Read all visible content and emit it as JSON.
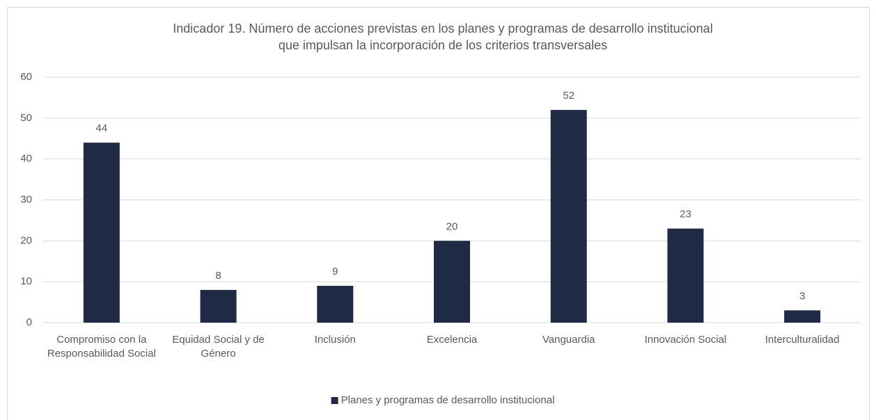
{
  "chart_data": {
    "type": "bar",
    "title": [
      "Indicador 19. Número de acciones previstas en los planes y programas de desarrollo institucional",
      "que impulsan la incorporación de los criterios transversales"
    ],
    "categories": [
      "Compromiso con la Responsabilidad Social",
      "Equidad Social y de Género",
      "Inclusión",
      "Excelencia",
      "Vanguardia",
      "Innovación Social",
      "Interculturalidad"
    ],
    "series": [
      {
        "name": "Planes y programas de desarrollo institucional",
        "color": "#1f2a44",
        "values": [
          44,
          8,
          9,
          20,
          52,
          23,
          3
        ]
      }
    ],
    "ylim": [
      0,
      60
    ],
    "yticks": [
      0,
      10,
      20,
      30,
      40,
      50,
      60
    ],
    "grid": true,
    "legend": "bottom"
  }
}
